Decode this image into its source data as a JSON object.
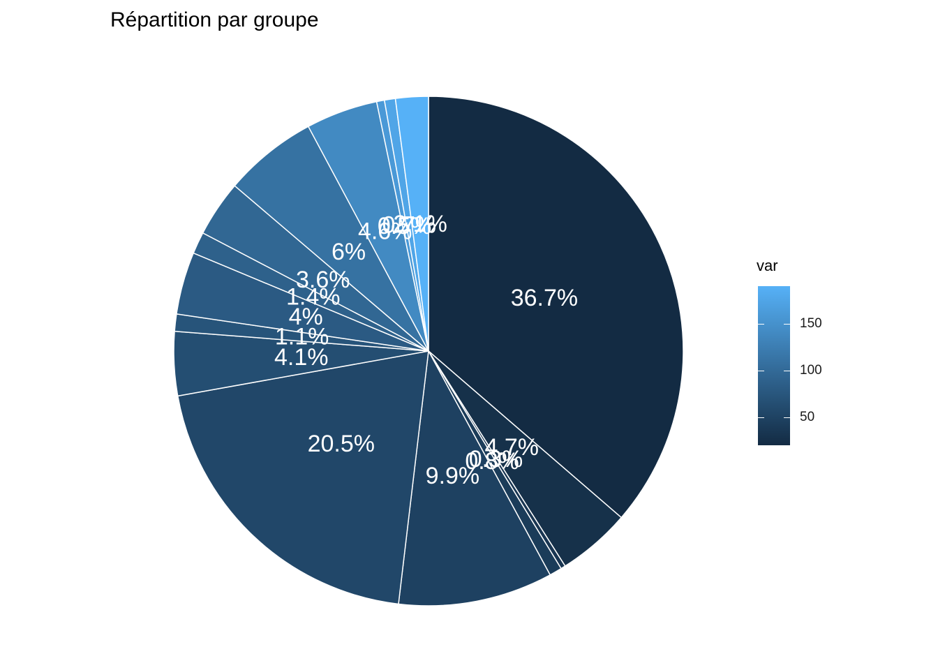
{
  "chart_data": {
    "type": "pie",
    "title": "Répartition par groupe",
    "slices": [
      {
        "label": "36.7%",
        "percent": 36.7,
        "var": 20
      },
      {
        "label": "4.7%",
        "percent": 4.7,
        "var": 27
      },
      {
        "label": "0.3%",
        "percent": 0.3,
        "var": 34
      },
      {
        "label": "0.8%",
        "percent": 0.8,
        "var": 41
      },
      {
        "label": "9.9%",
        "percent": 9.9,
        "var": 48
      },
      {
        "label": "20.5%",
        "percent": 20.5,
        "var": 56
      },
      {
        "label": "4.1%",
        "percent": 4.1,
        "var": 64
      },
      {
        "label": "1.1%",
        "percent": 1.1,
        "var": 72
      },
      {
        "label": "4%",
        "percent": 4.0,
        "var": 80
      },
      {
        "label": "1.4%",
        "percent": 1.4,
        "var": 88
      },
      {
        "label": "3.6%",
        "percent": 3.6,
        "var": 96
      },
      {
        "label": "6%",
        "percent": 6.0,
        "var": 110
      },
      {
        "label": "4.6%",
        "percent": 4.6,
        "var": 140
      },
      {
        "label": "0.5%",
        "percent": 0.5,
        "var": 160
      },
      {
        "label": "0.7%",
        "percent": 0.7,
        "var": 175
      },
      {
        "label": "2.1%",
        "percent": 2.1,
        "var": 190
      }
    ],
    "legend": {
      "title": "var",
      "position": "right",
      "min": 20,
      "max": 190,
      "ticks": [
        50,
        100,
        150
      ],
      "color_low": "#132B43",
      "color_high": "#56B1F7"
    },
    "grid": false
  }
}
